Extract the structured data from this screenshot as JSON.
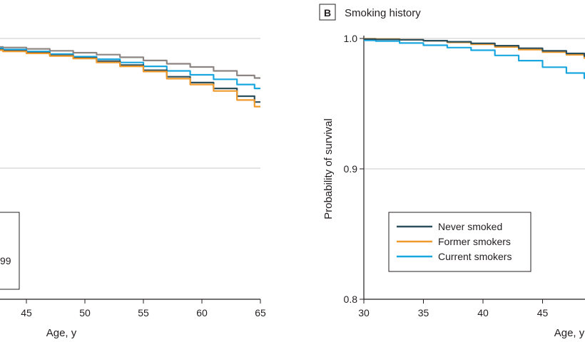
{
  "chart_data": [
    {
      "type": "line",
      "panel_label": "",
      "title": "",
      "xlabel": "Age, y",
      "ylabel": "",
      "xlim": [
        40,
        65
      ],
      "ylim": [
        0.9,
        1.0
      ],
      "x_ticks": [
        45,
        50,
        55,
        60,
        65
      ],
      "x_tick_labels": [
        "45",
        "50",
        "55",
        "60",
        "65"
      ],
      "y_ticks": [
        0.9,
        1.0
      ],
      "grid": "horizontal",
      "legend_fragment": "99",
      "series": [
        {
          "color": "#8c8582",
          "x": [
            40,
            42,
            44,
            46,
            48,
            50,
            52,
            54,
            56,
            58,
            60,
            62,
            64,
            65
          ],
          "y": [
            0.9945,
            0.9935,
            0.993,
            0.992,
            0.9905,
            0.989,
            0.9875,
            0.9855,
            0.983,
            0.9805,
            0.978,
            0.975,
            0.9715,
            0.9695
          ]
        },
        {
          "color": "#1aa7e0",
          "x": [
            40,
            42,
            44,
            46,
            48,
            50,
            52,
            54,
            56,
            58,
            60,
            62,
            64,
            65
          ],
          "y": [
            0.9935,
            0.9925,
            0.9915,
            0.99,
            0.988,
            0.986,
            0.984,
            0.9815,
            0.9785,
            0.975,
            0.972,
            0.9685,
            0.9645,
            0.9615
          ]
        },
        {
          "color": "#2c4f5e",
          "x": [
            40,
            42,
            44,
            46,
            48,
            50,
            52,
            54,
            56,
            58,
            60,
            62,
            64,
            65
          ],
          "y": [
            0.993,
            0.9915,
            0.9905,
            0.989,
            0.987,
            0.985,
            0.9825,
            0.9795,
            0.9755,
            0.9705,
            0.966,
            0.9615,
            0.9555,
            0.951
          ]
        },
        {
          "color": "#ef9a2c",
          "x": [
            40,
            42,
            44,
            46,
            48,
            50,
            52,
            54,
            56,
            58,
            60,
            62,
            64,
            65
          ],
          "y": [
            0.9925,
            0.991,
            0.99,
            0.9885,
            0.9865,
            0.9845,
            0.9815,
            0.9785,
            0.9745,
            0.969,
            0.9645,
            0.9595,
            0.9525,
            0.9475
          ]
        }
      ]
    },
    {
      "type": "line",
      "panel_label": "B",
      "title": "Smoking history",
      "xlabel": "Age, y",
      "ylabel": "Probability of survival",
      "xlim": [
        30,
        50
      ],
      "ylim": [
        0.8,
        1.0
      ],
      "x_ticks": [
        30,
        35,
        40,
        45
      ],
      "x_tick_labels": [
        "30",
        "35",
        "40",
        "45"
      ],
      "y_ticks": [
        0.8,
        0.9,
        1.0
      ],
      "y_tick_labels": [
        "0.8",
        "0.9",
        "1.0"
      ],
      "grid": "horizontal",
      "legend_placement": "bottom-center",
      "series": [
        {
          "name": "Never smoked",
          "color": "#2c4f5e",
          "x": [
            30,
            32,
            34,
            36,
            38,
            40,
            42,
            44,
            46,
            48,
            49
          ],
          "y": [
            0.9995,
            0.9993,
            0.999,
            0.9983,
            0.9975,
            0.9963,
            0.9945,
            0.9925,
            0.9905,
            0.9885,
            0.9865
          ]
        },
        {
          "name": "Former smokers",
          "color": "#ef9a2c",
          "x": [
            30,
            32,
            34,
            36,
            38,
            40,
            42,
            44,
            46,
            48,
            49
          ],
          "y": [
            0.9998,
            0.9996,
            0.999,
            0.9982,
            0.997,
            0.9955,
            0.9935,
            0.9915,
            0.9895,
            0.9875,
            0.985
          ]
        },
        {
          "name": "Current smokers",
          "color": "#1aa7e0",
          "x": [
            30,
            32,
            34,
            36,
            38,
            40,
            42,
            44,
            46,
            48,
            49
          ],
          "y": [
            0.9985,
            0.998,
            0.9965,
            0.9948,
            0.993,
            0.991,
            0.987,
            0.983,
            0.978,
            0.9735,
            0.9695
          ]
        }
      ]
    }
  ]
}
